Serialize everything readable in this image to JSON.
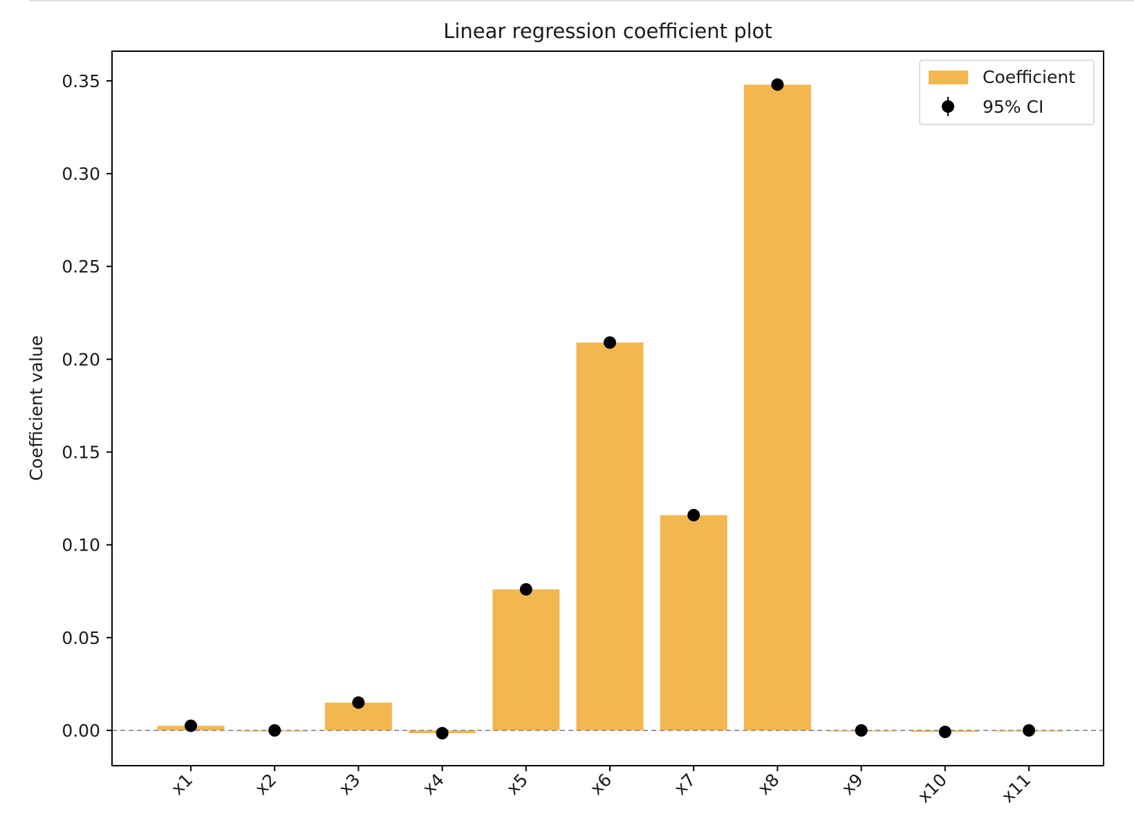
{
  "chart_data": {
    "type": "bar",
    "title": "Linear regression coefficient plot",
    "xlabel": "",
    "ylabel": "Coefficient value",
    "categories": [
      "x1",
      "x2",
      "x3",
      "x4",
      "x5",
      "x6",
      "x7",
      "x8",
      "x9",
      "x10",
      "x11"
    ],
    "series": [
      {
        "name": "Coefficient",
        "type": "bar",
        "color": "#f2b84f",
        "values": [
          0.0025,
          0.0,
          0.015,
          -0.0015,
          0.076,
          0.209,
          0.116,
          0.348,
          0.0,
          -0.0008,
          0.0
        ]
      },
      {
        "name": "95% CI",
        "type": "errorbar",
        "color": "#000000",
        "values": [
          0.0025,
          0.0,
          0.015,
          -0.0015,
          0.076,
          0.209,
          0.116,
          0.348,
          0.0,
          -0.0008,
          0.0
        ]
      }
    ],
    "ylim": [
      -0.019,
      0.366
    ],
    "yticks": [
      "0.00",
      "0.05",
      "0.10",
      "0.15",
      "0.20",
      "0.25",
      "0.30",
      "0.35"
    ],
    "ytick_values": [
      0.0,
      0.05,
      0.1,
      0.15,
      0.2,
      0.25,
      0.3,
      0.35
    ],
    "reference_line": 0.0,
    "xtick_rotation": "45 degrees",
    "grid": false,
    "legend_position": "top-right"
  }
}
